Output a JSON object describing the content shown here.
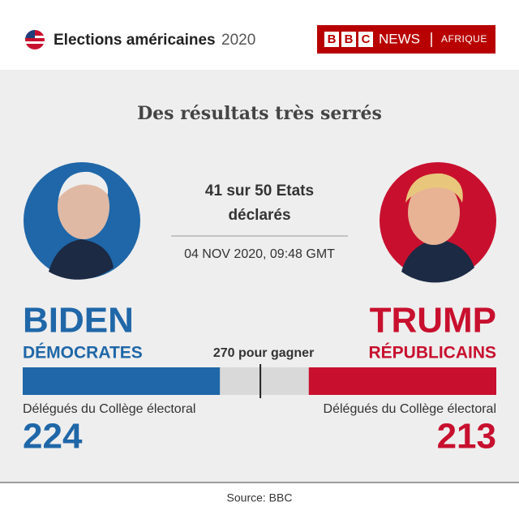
{
  "header": {
    "title": "Elections américaines",
    "year": "2020",
    "brand": [
      "B",
      "B",
      "C"
    ],
    "brand_news": "NEWS",
    "brand_region": "AFRIQUE"
  },
  "chart_data": {
    "type": "bar",
    "title": "Des résultats très serrés",
    "subtitle": [
      "41 sur 50 Etats",
      "déclarés"
    ],
    "date": "04 NOV 2020, 09:48 GMT",
    "xlim": [
      0,
      538
    ],
    "threshold": {
      "value": 270,
      "label": "270 pour gagner"
    },
    "series": [
      {
        "name": "BIDEN",
        "party": "DÉMOCRATES",
        "color": "#1f67a8",
        "caption": "Délégués du Collège électoral",
        "values": [
          224
        ]
      },
      {
        "name": "TRUMP",
        "party": "RÉPUBLICAINS",
        "color": "#c8102e",
        "caption": "Délégués du Collège électoral",
        "values": [
          213
        ]
      }
    ],
    "source": "Source: BBC"
  }
}
